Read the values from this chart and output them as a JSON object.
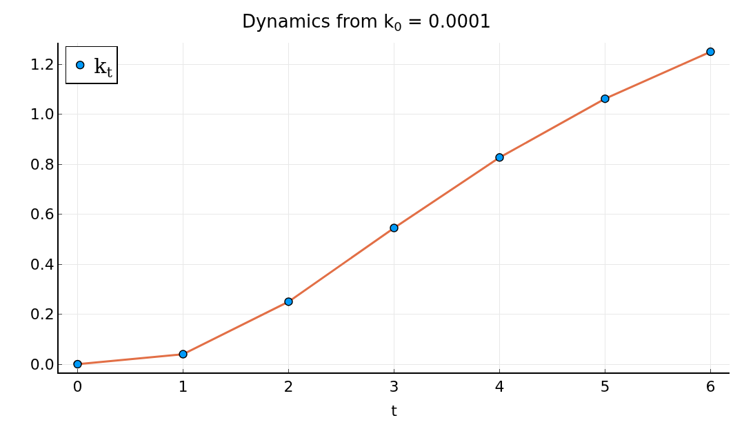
{
  "chart_data": {
    "type": "scatter",
    "title": "Dynamics from k$_{0}$ = 0.0001",
    "xlabel": "t",
    "x": [
      0,
      1,
      2,
      3,
      4,
      5,
      6
    ],
    "series": [
      {
        "type": "line",
        "color": "#e26f46",
        "values": [
          0.0,
          0.04,
          0.25,
          0.545,
          0.827,
          1.062,
          1.25
        ],
        "marker": "none",
        "line_style": "solid"
      },
      {
        "name": "k$_{t}$",
        "color": "#009af9",
        "values": [
          0.0,
          0.04,
          0.25,
          0.545,
          0.827,
          1.062,
          1.25
        ],
        "marker": "circle"
      }
    ],
    "xlim": [
      -0.18,
      6.18
    ],
    "xticks": [
      0,
      1,
      2,
      3,
      4,
      5,
      6
    ],
    "ylim": [
      -0.033,
      1.286
    ],
    "yticks": [
      {
        "value": 0,
        "label": "0.0"
      },
      0.2,
      0.4,
      0.6,
      0.8,
      {
        "value": 1,
        "label": "1.0"
      },
      1.2
    ],
    "grid": true,
    "legend": "top left"
  }
}
